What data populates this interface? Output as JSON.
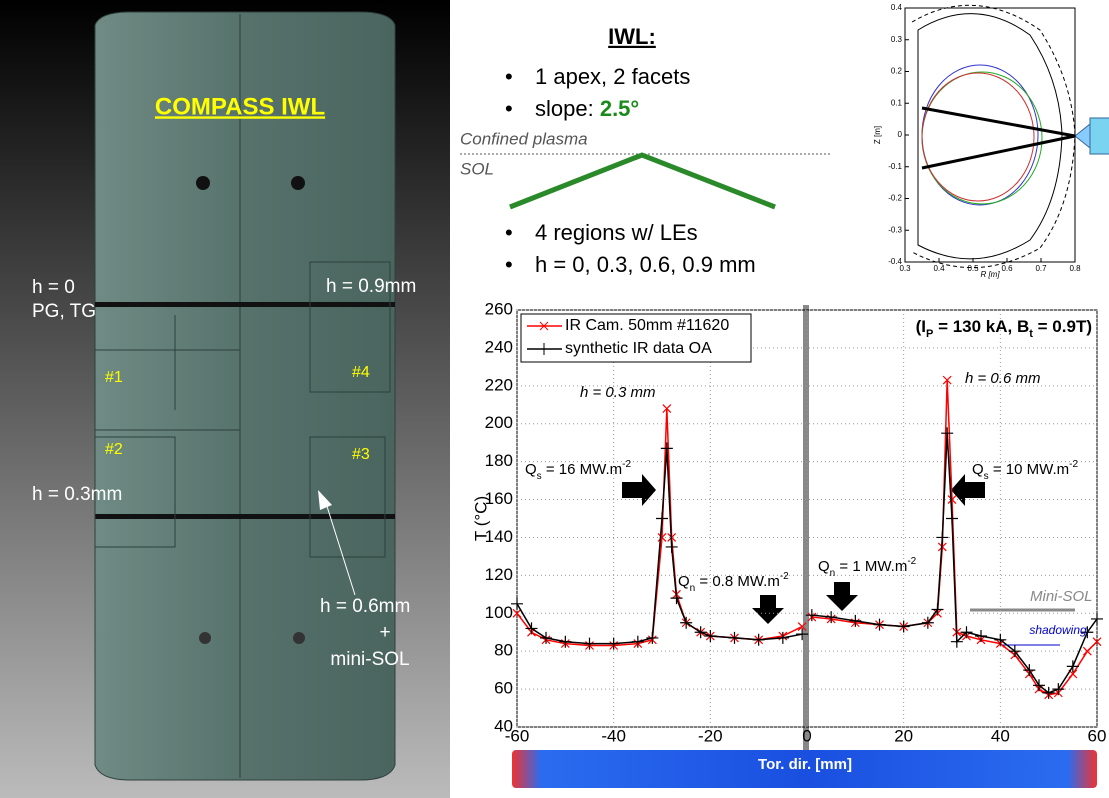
{
  "left_panel": {
    "title": "COMPASS IWL",
    "labels": [
      "h = 0",
      "PG, TG",
      "h = 0.9mm",
      "#1",
      "#4",
      "#2",
      "#3",
      "h = 0.3mm",
      "h = 0.6mm",
      "+",
      "mini-SOL"
    ]
  },
  "middle": {
    "heading": "IWL:",
    "bullets_top": [
      "1 apex, 2 facets",
      "slope: "
    ],
    "slope_value": "2.5°",
    "confined": "Confined plasma",
    "sol": "SOL",
    "bullets_bottom": [
      "4 regions w/ LEs",
      "h = 0, 0.3, 0.6, 0.9 mm"
    ]
  },
  "chart_data": [
    {
      "type": "line",
      "title": [
        {
          "t": "(I"
        },
        {
          "t": "P",
          "sub": true
        },
        {
          "t": " = 130 kA, B"
        },
        {
          "t": "t",
          "sub": true
        },
        {
          "t": " = 0.9T)"
        }
      ],
      "x_label": "Tor. dir. [mm]",
      "y_label": "T (°C)",
      "x": [
        -60,
        -57,
        -54,
        -50,
        -45,
        -40,
        -35,
        -32,
        -30,
        -29,
        -28,
        -27,
        -25,
        -22,
        -20,
        -15,
        -10,
        -5,
        -1,
        0,
        1,
        5,
        10,
        15,
        20,
        25,
        27,
        28,
        29,
        30,
        31,
        33,
        36,
        40,
        43,
        46,
        48,
        50,
        52,
        55,
        58,
        60
      ],
      "series": [
        {
          "name": "IR Cam. 50mm #11620",
          "color": "#ff0000",
          "marker": "x",
          "values": [
            100,
            90,
            86,
            84,
            83,
            83,
            84,
            86,
            140,
            208,
            140,
            110,
            95,
            90,
            88,
            87,
            86,
            88,
            93,
            null,
            98,
            97,
            95,
            94,
            93,
            95,
            100,
            135,
            223,
            160,
            90,
            88,
            86,
            84,
            78,
            68,
            60,
            57,
            58,
            68,
            80,
            85
          ]
        },
        {
          "name": "synthetic IR data OA",
          "color": "#000000",
          "marker": "+",
          "values": [
            105,
            92,
            87,
            85,
            84,
            84,
            85,
            87,
            150,
            187,
            135,
            108,
            95,
            90,
            88,
            87,
            86,
            87,
            89,
            null,
            99,
            98,
            96,
            94,
            93,
            95,
            102,
            140,
            195,
            150,
            85,
            90,
            88,
            86,
            80,
            70,
            62,
            58,
            60,
            72,
            90,
            97
          ]
        }
      ],
      "xlim": [
        -60,
        60
      ],
      "xticks": [
        -60,
        -40,
        -20,
        0,
        20,
        40,
        60
      ],
      "ylim": [
        40,
        260
      ],
      "yticks": [
        40,
        60,
        80,
        100,
        120,
        140,
        160,
        180,
        200,
        220,
        240,
        260
      ],
      "grid": true,
      "legend": "upper left",
      "annotations": [
        "h = 0.3 mm",
        "h = 0.6 mm",
        "Mini-SOL",
        "shadowing"
      ],
      "q_labels": [
        {
          "main": "Q",
          "sub": "s",
          "rest": " = 16 MW.m",
          "sup": "-2"
        },
        {
          "main": "Q",
          "sub": "s",
          "rest": " = 10 MW.m",
          "sup": "-2"
        },
        {
          "main": "Q",
          "sub": "n",
          "rest": " = 0.8 MW.m",
          "sup": "-2"
        },
        {
          "main": "Q",
          "sub": "n",
          "rest": " = 1 MW.m",
          "sup": "-2"
        }
      ]
    },
    {
      "type": "frame",
      "x_label": "R [m]",
      "y_label": "Z [m]",
      "xlim": [
        0.3,
        0.8
      ],
      "xticks": [
        0.3,
        0.4,
        0.5,
        0.6,
        0.7,
        0.8
      ],
      "ylim": [
        -0.4,
        0.4
      ],
      "yticks": [
        -0.4,
        -0.3,
        -0.2,
        -0.1,
        0,
        0.1,
        0.2,
        0.3,
        0.4
      ]
    }
  ]
}
